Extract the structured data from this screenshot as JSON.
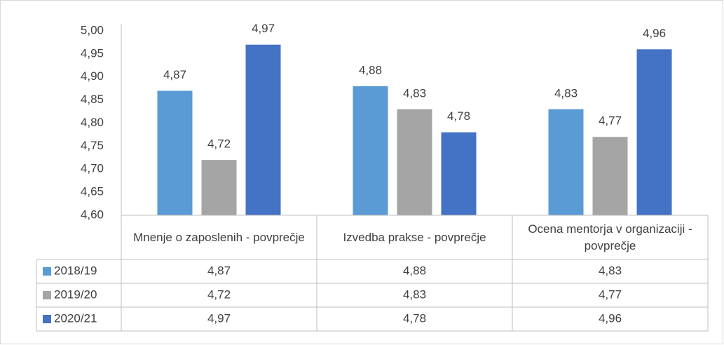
{
  "chart_data": {
    "type": "bar",
    "categories": [
      "Mnenje o zaposlenih - povprečje",
      "Izvedba prakse - povprečje",
      "Ocena mentorja v organizaciji - povprečje"
    ],
    "series": [
      {
        "name": "2018/19",
        "color": "#5b9bd5",
        "values": [
          4.87,
          4.88,
          4.83
        ],
        "value_labels": [
          "4,87",
          "4,88",
          "4,83"
        ]
      },
      {
        "name": "2019/20",
        "color": "#a5a5a5",
        "values": [
          4.72,
          4.83,
          4.77
        ],
        "value_labels": [
          "4,72",
          "4,83",
          "4,77"
        ]
      },
      {
        "name": "2020/21",
        "color": "#4472c4",
        "values": [
          4.97,
          4.78,
          4.96
        ],
        "value_labels": [
          "4,97",
          "4,78",
          "4,96"
        ]
      }
    ],
    "ylim": [
      4.6,
      5.0
    ],
    "yticks": [
      {
        "value": 4.6,
        "label": "4,60"
      },
      {
        "value": 4.65,
        "label": "4,65"
      },
      {
        "value": 4.7,
        "label": "4,70"
      },
      {
        "value": 4.75,
        "label": "4,75"
      },
      {
        "value": 4.8,
        "label": "4,80"
      },
      {
        "value": 4.85,
        "label": "4,85"
      },
      {
        "value": 4.9,
        "label": "4,90"
      },
      {
        "value": 4.95,
        "label": "4,95"
      },
      {
        "value": 5.0,
        "label": "5,00"
      }
    ],
    "grid": false,
    "data_table": true
  }
}
